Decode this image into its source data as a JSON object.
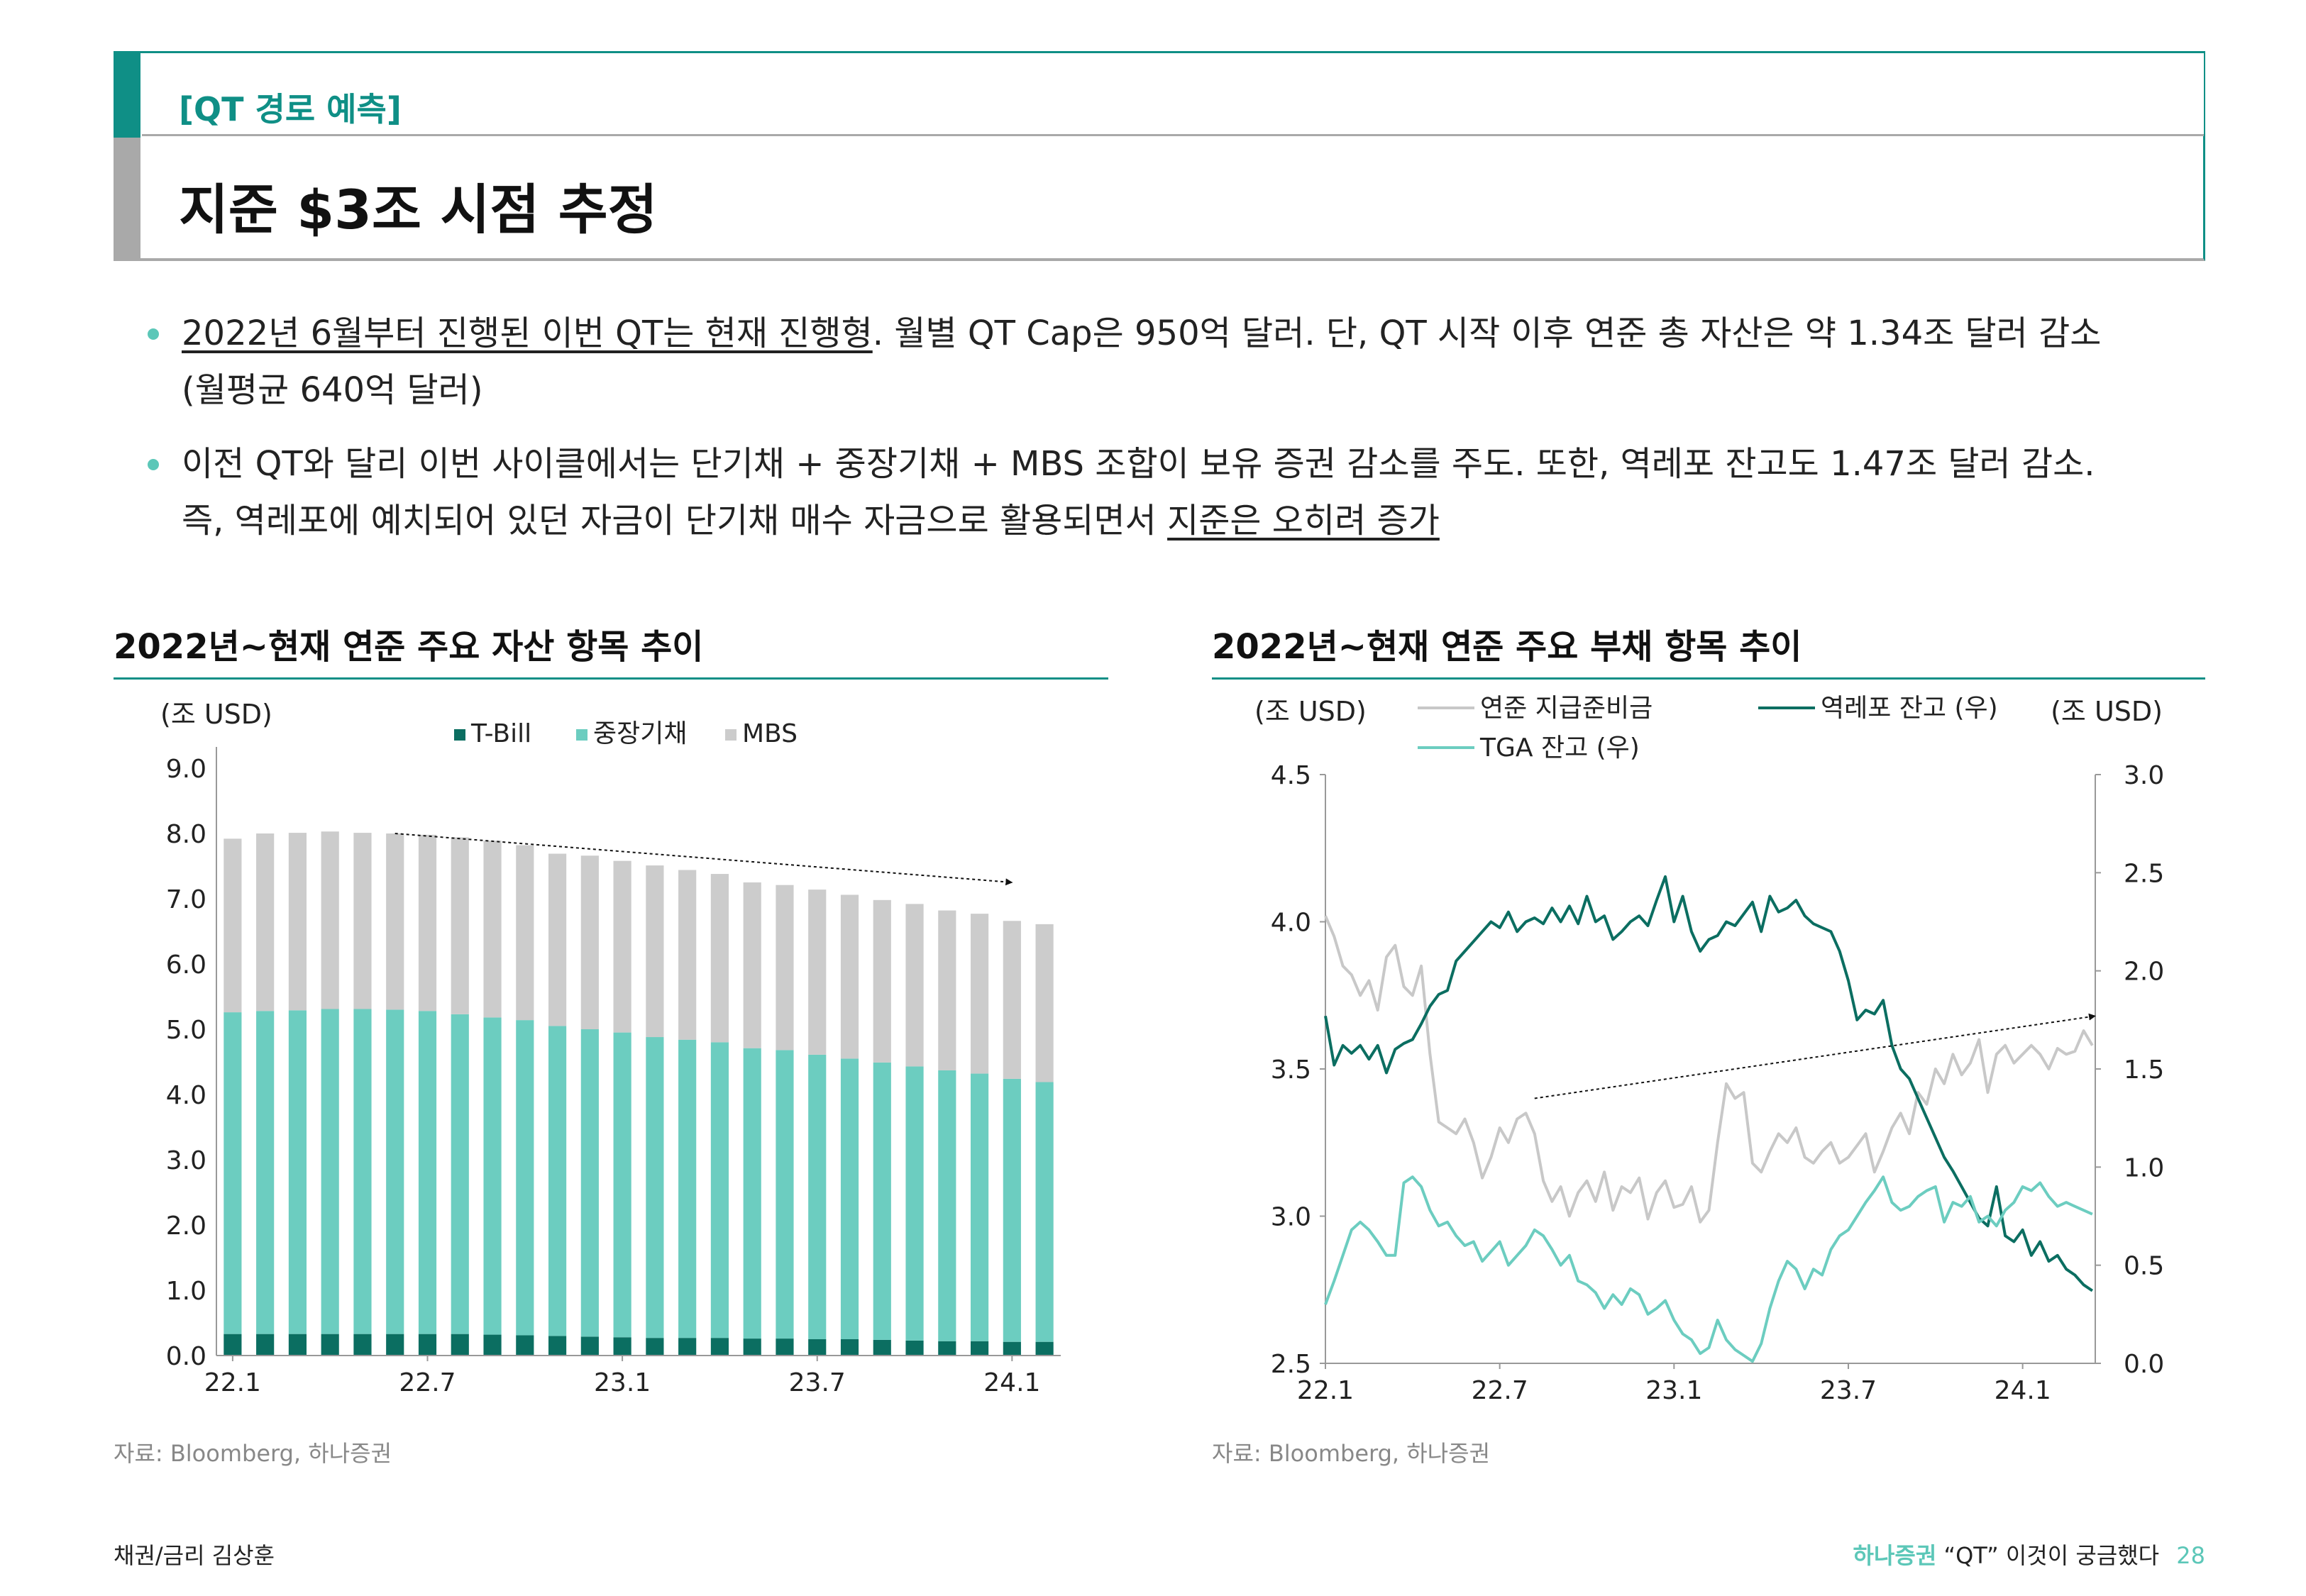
{
  "header": {
    "section_tag": "[QT 경로 예측]",
    "title": "지준 $3조 시점 추정"
  },
  "bullets": [
    {
      "underlined": "2022년 6월부터 진행된 이번 QT는 현재 진행형",
      "rest": ". 월별 QT Cap은 950억 달러. 단, QT 시작 이후 연준 총 자산은 약 1.34조 달러 감소",
      "line2": "(월평균 640억 달러)"
    },
    {
      "line1": "이전 QT와 달리 이번 사이클에서는 단기채 + 중장기채 + MBS 조합이 보유 증권 감소를 주도. 또한, 역레포 잔고도 1.47조 달러 감소.",
      "line2_plain": "즉, 역레포에 예치되어 있던 자금이 단기채 매수 자금으로 활용되면서 ",
      "line2_underlined": "지준은 오히려 증가"
    }
  ],
  "charts": {
    "left": {
      "title": "2022년~현재 연준 주요 자산 항목 추이",
      "unit": "(조 USD)",
      "source": "자료: Bloomberg, 하나증권"
    },
    "right": {
      "title": "2022년~현재 연준 주요 부채 항목 추이",
      "unit_left": "(조 USD)",
      "unit_right": "(조 USD)",
      "source": "자료: Bloomberg, 하나증권"
    }
  },
  "chart_data": [
    {
      "type": "bar",
      "stacked": true,
      "title": "2022년~현재 연준 주요 자산 항목 추이",
      "ylabel": "(조 USD)",
      "ylim": [
        0,
        9
      ],
      "yticks": [
        "0.0",
        "1.0",
        "2.0",
        "3.0",
        "4.0",
        "5.0",
        "6.0",
        "7.0",
        "8.0",
        "9.0"
      ],
      "xtick_labels": [
        "22.1",
        "22.7",
        "23.1",
        "23.7",
        "24.1"
      ],
      "xtick_index": [
        0,
        6,
        12,
        18,
        24
      ],
      "colors": {
        "T-Bill": "#0b6e61",
        "중장기채": "#6ccdc0",
        "MBS": "#cccccc"
      },
      "legend": [
        "T-Bill",
        "중장기채",
        "MBS"
      ],
      "series": [
        {
          "name": "T-Bill",
          "values": [
            0.33,
            0.33,
            0.33,
            0.33,
            0.33,
            0.33,
            0.33,
            0.33,
            0.32,
            0.31,
            0.3,
            0.29,
            0.28,
            0.27,
            0.27,
            0.27,
            0.26,
            0.26,
            0.25,
            0.25,
            0.24,
            0.23,
            0.22,
            0.22,
            0.21,
            0.21
          ]
        },
        {
          "name": "중장기채",
          "values": [
            4.93,
            4.95,
            4.96,
            4.98,
            4.98,
            4.97,
            4.95,
            4.9,
            4.86,
            4.83,
            4.75,
            4.71,
            4.67,
            4.61,
            4.57,
            4.53,
            4.45,
            4.42,
            4.36,
            4.3,
            4.25,
            4.2,
            4.15,
            4.1,
            4.03,
            3.98
          ]
        },
        {
          "name": "MBS",
          "values": [
            2.66,
            2.72,
            2.72,
            2.72,
            2.7,
            2.7,
            2.7,
            2.71,
            2.71,
            2.68,
            2.64,
            2.66,
            2.63,
            2.63,
            2.6,
            2.58,
            2.54,
            2.53,
            2.53,
            2.51,
            2.49,
            2.49,
            2.45,
            2.45,
            2.42,
            2.42
          ]
        }
      ],
      "trend_arrow": {
        "from": [
          5,
          8.0
        ],
        "to": [
          24,
          7.25
        ]
      }
    },
    {
      "type": "line",
      "title": "2022년~현재 연준 주요 부채 항목 추이",
      "ylabel_left": "(조 USD)",
      "ylabel_right": "(조 USD)",
      "ylim_left": [
        2.5,
        4.5
      ],
      "ylim_right": [
        0.0,
        3.0
      ],
      "yticks_left": [
        "2.5",
        "3.0",
        "3.5",
        "4.0",
        "4.5"
      ],
      "yticks_right": [
        "0.0",
        "0.5",
        "1.0",
        "1.5",
        "2.0",
        "2.5",
        "3.0"
      ],
      "xtick_labels": [
        "22.1",
        "22.7",
        "23.1",
        "23.7",
        "24.1"
      ],
      "xtick_month": [
        0,
        6,
        12,
        18,
        24
      ],
      "x_months_range": [
        0,
        26.5
      ],
      "legend": [
        "연준 지급준비금",
        "역레포 잔고 (우)",
        "TGA 잔고 (우)"
      ],
      "series": [
        {
          "name": "연준 지급준비금",
          "axis": "left",
          "color": "#c8c8c8",
          "x": [
            0,
            0.3,
            0.6,
            0.9,
            1.2,
            1.5,
            1.8,
            2.1,
            2.4,
            2.7,
            3.0,
            3.3,
            3.6,
            3.9,
            4.2,
            4.5,
            4.8,
            5.1,
            5.4,
            5.7,
            6.0,
            6.3,
            6.6,
            6.9,
            7.2,
            7.5,
            7.8,
            8.1,
            8.4,
            8.7,
            9.0,
            9.3,
            9.6,
            9.9,
            10.2,
            10.5,
            10.8,
            11.1,
            11.4,
            11.7,
            12.0,
            12.3,
            12.6,
            12.9,
            13.2,
            13.5,
            13.8,
            14.1,
            14.4,
            14.7,
            15.0,
            15.3,
            15.6,
            15.9,
            16.2,
            16.5,
            16.8,
            17.1,
            17.4,
            17.7,
            18.0,
            18.3,
            18.6,
            18.9,
            19.2,
            19.5,
            19.8,
            20.1,
            20.4,
            20.7,
            21.0,
            21.3,
            21.6,
            21.9,
            22.2,
            22.5,
            22.8,
            23.1,
            23.4,
            23.7,
            24.0,
            24.3,
            24.6,
            24.9,
            25.2,
            25.5,
            25.8,
            26.1,
            26.4
          ],
          "values": [
            4.02,
            3.95,
            3.85,
            3.82,
            3.75,
            3.8,
            3.7,
            3.88,
            3.92,
            3.78,
            3.75,
            3.85,
            3.55,
            3.32,
            3.3,
            3.28,
            3.33,
            3.25,
            3.13,
            3.2,
            3.3,
            3.25,
            3.33,
            3.35,
            3.28,
            3.12,
            3.05,
            3.1,
            3.0,
            3.08,
            3.12,
            3.05,
            3.15,
            3.02,
            3.1,
            3.08,
            3.13,
            2.99,
            3.08,
            3.12,
            3.03,
            3.04,
            3.1,
            2.98,
            3.02,
            3.25,
            3.45,
            3.4,
            3.42,
            3.18,
            3.15,
            3.22,
            3.28,
            3.25,
            3.3,
            3.2,
            3.18,
            3.22,
            3.25,
            3.18,
            3.2,
            3.24,
            3.28,
            3.15,
            3.22,
            3.3,
            3.35,
            3.28,
            3.42,
            3.38,
            3.5,
            3.45,
            3.55,
            3.48,
            3.52,
            3.6,
            3.42,
            3.55,
            3.58,
            3.52,
            3.55,
            3.58,
            3.55,
            3.5,
            3.57,
            3.55,
            3.56,
            3.63,
            3.58
          ]
        },
        {
          "name": "역레포 잔고 (우)",
          "axis": "right",
          "color": "#0b6e61",
          "x": [
            0,
            0.3,
            0.6,
            0.9,
            1.2,
            1.5,
            1.8,
            2.1,
            2.4,
            2.7,
            3.0,
            3.3,
            3.6,
            3.9,
            4.2,
            4.5,
            4.8,
            5.1,
            5.4,
            5.7,
            6.0,
            6.3,
            6.6,
            6.9,
            7.2,
            7.5,
            7.8,
            8.1,
            8.4,
            8.7,
            9.0,
            9.3,
            9.6,
            9.9,
            10.2,
            10.5,
            10.8,
            11.1,
            11.4,
            11.7,
            12.0,
            12.3,
            12.6,
            12.9,
            13.2,
            13.5,
            13.8,
            14.1,
            14.4,
            14.7,
            15.0,
            15.3,
            15.6,
            15.9,
            16.2,
            16.5,
            16.8,
            17.1,
            17.4,
            17.7,
            18.0,
            18.3,
            18.6,
            18.9,
            19.2,
            19.5,
            19.8,
            20.1,
            20.4,
            20.7,
            21.0,
            21.3,
            21.6,
            21.9,
            22.2,
            22.5,
            22.8,
            23.1,
            23.4,
            23.7,
            24.0,
            24.3,
            24.6,
            24.9,
            25.2,
            25.5,
            25.8,
            26.1,
            26.4
          ],
          "values": [
            1.77,
            1.52,
            1.62,
            1.58,
            1.62,
            1.55,
            1.62,
            1.48,
            1.6,
            1.63,
            1.65,
            1.73,
            1.82,
            1.88,
            1.9,
            2.05,
            2.1,
            2.15,
            2.2,
            2.25,
            2.22,
            2.3,
            2.2,
            2.25,
            2.27,
            2.24,
            2.32,
            2.25,
            2.33,
            2.24,
            2.38,
            2.25,
            2.28,
            2.16,
            2.2,
            2.25,
            2.28,
            2.23,
            2.36,
            2.48,
            2.25,
            2.38,
            2.2,
            2.1,
            2.16,
            2.18,
            2.25,
            2.23,
            2.29,
            2.35,
            2.2,
            2.38,
            2.3,
            2.32,
            2.36,
            2.28,
            2.24,
            2.22,
            2.2,
            2.1,
            1.95,
            1.75,
            1.8,
            1.78,
            1.85,
            1.62,
            1.5,
            1.45,
            1.35,
            1.25,
            1.15,
            1.05,
            0.98,
            0.9,
            0.82,
            0.74,
            0.7,
            0.9,
            0.65,
            0.62,
            0.68,
            0.55,
            0.62,
            0.52,
            0.55,
            0.48,
            0.45,
            0.4,
            0.37
          ]
        },
        {
          "name": "TGA 잔고 (우)",
          "axis": "right",
          "color": "#6ccdc0",
          "x": [
            0,
            0.3,
            0.6,
            0.9,
            1.2,
            1.5,
            1.8,
            2.1,
            2.4,
            2.7,
            3.0,
            3.3,
            3.6,
            3.9,
            4.2,
            4.5,
            4.8,
            5.1,
            5.4,
            5.7,
            6.0,
            6.3,
            6.6,
            6.9,
            7.2,
            7.5,
            7.8,
            8.1,
            8.4,
            8.7,
            9.0,
            9.3,
            9.6,
            9.9,
            10.2,
            10.5,
            10.8,
            11.1,
            11.4,
            11.7,
            12.0,
            12.3,
            12.6,
            12.9,
            13.2,
            13.5,
            13.8,
            14.1,
            14.4,
            14.7,
            15.0,
            15.3,
            15.6,
            15.9,
            16.2,
            16.5,
            16.8,
            17.1,
            17.4,
            17.7,
            18.0,
            18.3,
            18.6,
            18.9,
            19.2,
            19.5,
            19.8,
            20.1,
            20.4,
            20.7,
            21.0,
            21.3,
            21.6,
            21.9,
            22.2,
            22.5,
            22.8,
            23.1,
            23.4,
            23.7,
            24.0,
            24.3,
            24.6,
            24.9,
            25.2,
            25.5,
            25.8,
            26.1,
            26.4
          ],
          "values": [
            0.3,
            0.42,
            0.55,
            0.68,
            0.72,
            0.68,
            0.62,
            0.55,
            0.55,
            0.92,
            0.95,
            0.9,
            0.78,
            0.7,
            0.72,
            0.65,
            0.6,
            0.62,
            0.52,
            0.57,
            0.62,
            0.5,
            0.55,
            0.6,
            0.68,
            0.65,
            0.58,
            0.5,
            0.55,
            0.42,
            0.4,
            0.36,
            0.28,
            0.35,
            0.3,
            0.38,
            0.35,
            0.25,
            0.28,
            0.32,
            0.22,
            0.15,
            0.12,
            0.05,
            0.08,
            0.22,
            0.12,
            0.07,
            0.04,
            0.01,
            0.1,
            0.28,
            0.42,
            0.52,
            0.48,
            0.38,
            0.48,
            0.45,
            0.58,
            0.65,
            0.68,
            0.75,
            0.82,
            0.88,
            0.95,
            0.82,
            0.78,
            0.8,
            0.85,
            0.88,
            0.9,
            0.72,
            0.82,
            0.8,
            0.85,
            0.72,
            0.75,
            0.7,
            0.78,
            0.82,
            0.9,
            0.88,
            0.92,
            0.85,
            0.8,
            0.82,
            0.8,
            0.78,
            0.76
          ]
        }
      ],
      "trend_arrow": {
        "from": [
          7.2,
          1.35
        ],
        "to": [
          26.5,
          1.77
        ]
      }
    }
  ],
  "footer": {
    "author": "채권/금리 김상훈",
    "brand": "하나증권",
    "report_title": "“QT” 이것이 궁금했다",
    "page": "28"
  }
}
